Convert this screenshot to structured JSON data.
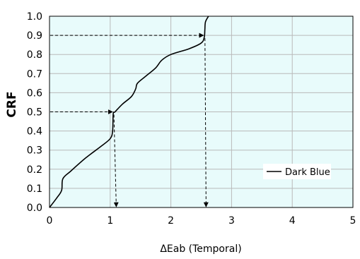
{
  "chart_data": {
    "type": "line",
    "xlabel": "ΔEab (Temporal)",
    "ylabel": "CRF",
    "xlim": [
      0,
      5
    ],
    "ylim": [
      0,
      1.0
    ],
    "xticks": [
      "0",
      "1",
      "2",
      "3",
      "4",
      "5"
    ],
    "yticks": [
      "0.0",
      "0.1",
      "0.2",
      "0.3",
      "0.4",
      "0.5",
      "0.6",
      "0.7",
      "0.8",
      "0.9",
      "1.0"
    ],
    "grid": true,
    "plot_background": "#e8fbfb",
    "line_color": "#000000",
    "legend": {
      "placement": "bottom-right",
      "entries": [
        "Dark Blue"
      ]
    },
    "series": [
      {
        "name": "Dark Blue",
        "x": [
          0,
          0.12,
          0.2,
          0.22,
          0.35,
          0.6,
          0.85,
          1.0,
          1.04,
          1.05,
          1.08,
          1.2,
          1.35,
          1.42,
          1.45,
          1.6,
          1.75,
          1.85,
          2.0,
          2.3,
          2.5,
          2.55,
          2.56,
          2.57,
          2.62
        ],
        "y": [
          0,
          0.05,
          0.09,
          0.15,
          0.19,
          0.26,
          0.32,
          0.36,
          0.4,
          0.49,
          0.5,
          0.54,
          0.58,
          0.62,
          0.65,
          0.69,
          0.73,
          0.77,
          0.8,
          0.83,
          0.86,
          0.89,
          0.93,
          0.97,
          1.0
        ]
      }
    ],
    "annotations": [
      {
        "type": "arrow-path",
        "from": [
          0,
          0.5
        ],
        "corner": [
          1.05,
          0.5
        ],
        "to": [
          1.1,
          0
        ],
        "style": "dashed"
      },
      {
        "type": "arrow-path",
        "from": [
          0,
          0.9
        ],
        "corner": [
          2.55,
          0.9
        ],
        "to": [
          2.58,
          0
        ],
        "style": "dashed"
      }
    ]
  }
}
